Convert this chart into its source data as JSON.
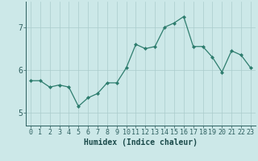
{
  "x": [
    0,
    1,
    2,
    3,
    4,
    5,
    6,
    7,
    8,
    9,
    10,
    11,
    12,
    13,
    14,
    15,
    16,
    17,
    18,
    19,
    20,
    21,
    22,
    23
  ],
  "y": [
    5.75,
    5.75,
    5.6,
    5.65,
    5.6,
    5.15,
    5.35,
    5.45,
    5.7,
    5.7,
    6.05,
    6.6,
    6.5,
    6.55,
    7.0,
    7.1,
    7.25,
    6.55,
    6.55,
    6.3,
    5.95,
    6.45,
    6.35,
    6.05
  ],
  "xlabel": "Humidex (Indice chaleur)",
  "ylim": [
    4.7,
    7.6
  ],
  "xlim": [
    -0.5,
    23.5
  ],
  "yticks": [
    5,
    6,
    7
  ],
  "xticks": [
    0,
    1,
    2,
    3,
    4,
    5,
    6,
    7,
    8,
    9,
    10,
    11,
    12,
    13,
    14,
    15,
    16,
    17,
    18,
    19,
    20,
    21,
    22,
    23
  ],
  "line_color": "#2e7d6e",
  "marker": "D",
  "marker_size": 2.0,
  "bg_color": "#cce8e8",
  "grid_color": "#aacccc",
  "tick_color": "#2e6060",
  "label_color": "#1a4a4a",
  "font_size_ticks": 6,
  "font_size_xlabel": 7
}
